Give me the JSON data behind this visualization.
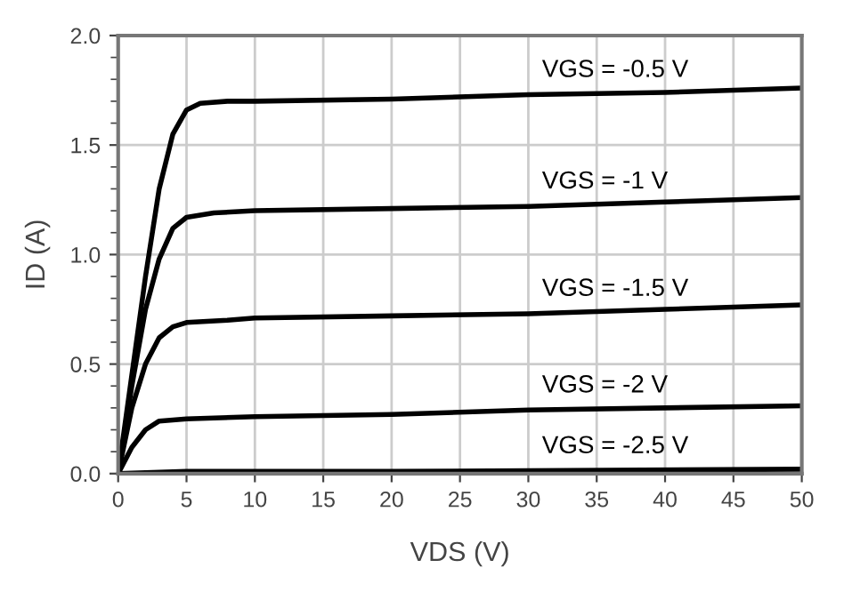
{
  "chart_data": {
    "type": "line",
    "xlabel": "VDS (V)",
    "ylabel": "ID (A)",
    "xlim": [
      0,
      50
    ],
    "xticks": [
      0,
      5,
      10,
      15,
      20,
      25,
      30,
      35,
      40,
      45,
      50
    ],
    "ylim": [
      0,
      2.0
    ],
    "yticks": [
      {
        "value": 0,
        "label": "0.0"
      },
      0.5,
      {
        "value": 1,
        "label": "1.0"
      },
      1.5,
      {
        "value": 2,
        "label": "2.0"
      }
    ],
    "grid": true,
    "marker": "none",
    "line_style": "solid",
    "series": [
      {
        "name": "VGS = -0.5 V",
        "color": "#000000",
        "x": [
          0,
          1,
          2,
          3,
          4,
          5,
          6,
          8,
          10,
          20,
          30,
          40,
          50
        ],
        "values": [
          0,
          0.45,
          0.9,
          1.3,
          1.55,
          1.66,
          1.69,
          1.7,
          1.7,
          1.71,
          1.73,
          1.74,
          1.76
        ]
      },
      {
        "name": "VGS = -1 V",
        "color": "#000000",
        "x": [
          0,
          1,
          2,
          3,
          4,
          5,
          7,
          10,
          20,
          30,
          40,
          50
        ],
        "values": [
          0,
          0.4,
          0.75,
          0.98,
          1.12,
          1.17,
          1.19,
          1.2,
          1.21,
          1.22,
          1.24,
          1.26
        ]
      },
      {
        "name": "VGS = -1.5 V",
        "color": "#000000",
        "x": [
          0,
          1,
          2,
          3,
          4,
          5,
          8,
          10,
          20,
          30,
          40,
          50
        ],
        "values": [
          0,
          0.3,
          0.5,
          0.62,
          0.67,
          0.69,
          0.7,
          0.71,
          0.72,
          0.73,
          0.75,
          0.77
        ]
      },
      {
        "name": "VGS = -2 V",
        "color": "#000000",
        "x": [
          0,
          1,
          2,
          3,
          5,
          10,
          20,
          30,
          40,
          50
        ],
        "values": [
          0,
          0.12,
          0.2,
          0.24,
          0.25,
          0.26,
          0.27,
          0.29,
          0.3,
          0.31
        ]
      },
      {
        "name": "VGS = -2.5 V",
        "color": "#000000",
        "x": [
          0,
          5,
          20,
          50
        ],
        "values": [
          0,
          0.01,
          0.01,
          0.02
        ]
      }
    ]
  }
}
